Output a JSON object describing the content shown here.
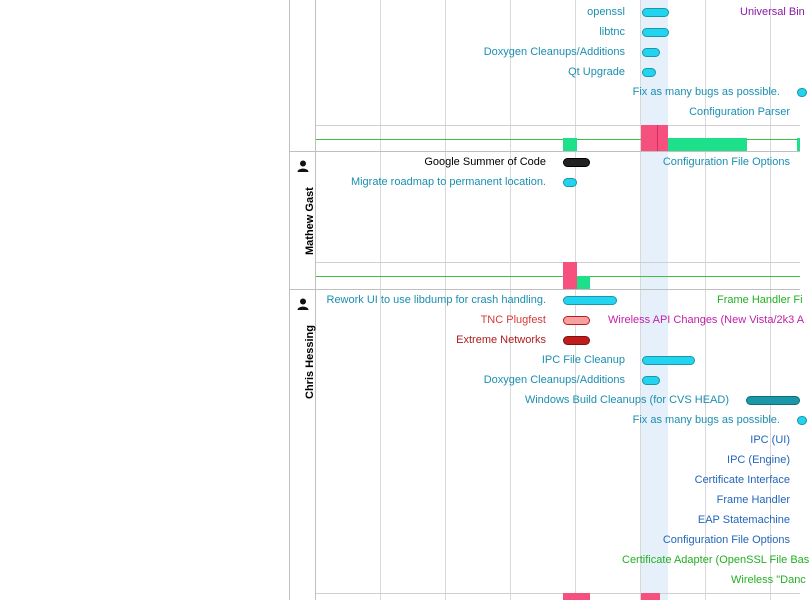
{
  "colors": {
    "blue_text": "#1a8fb0",
    "navy_text": "#2266bb",
    "purple_text": "#8a1aa8",
    "magenta_text": "#c21fa8",
    "green_text": "#22b022",
    "red_text": "#d83a3a",
    "darkred_text": "#b01c1c",
    "pill_cyan": "#22d4f0",
    "pill_teal": "#1a97a8",
    "pill_black": "#222222",
    "pill_pink": "#f6a0a0",
    "pill_red": "#c01c1c",
    "load_pink": "#f6517e",
    "load_green": "#1ee08a"
  },
  "sections": {
    "top": {
      "labels": {
        "openssl": "openssl",
        "universal": "Universal Bin",
        "libtnc": "libtnc",
        "doxygen": "Doxygen Cleanups/Additions",
        "qt": "Qt Upgrade",
        "bugs": "Fix as many bugs as possible.",
        "config_parser": "Configuration Parser"
      }
    },
    "mathew": {
      "person": "Mathew Gast",
      "icon": "person-icon",
      "labels": {
        "gsoc": "Google Summer of Code",
        "config_file_options": "Configuration File Options",
        "roadmap": "Migrate roadmap to permanent location."
      }
    },
    "chris": {
      "person": "Chris Hessing",
      "icon": "person-icon",
      "labels": {
        "rework": "Rework UI to use libdump for crash handling.",
        "frame_handler_fi": "Frame Handler Fi",
        "tnc": "TNC Plugfest",
        "wireless_api": "Wireless API Changes (New Vista/2k3 A",
        "extreme": "Extreme Networks",
        "ipc_cleanup": "IPC File Cleanup",
        "doxygen": "Doxygen Cleanups/Additions",
        "windows_build": "Windows Build Cleanups (for CVS HEAD)",
        "bugs": "Fix as many bugs as possible.",
        "ipc_ui": "IPC (UI)",
        "ipc_engine": "IPC (Engine)",
        "cert_interface": "Certificate Interface",
        "frame_handler": "Frame Handler",
        "eap": "EAP Statemachine",
        "config_file_options": "Configuration File Options",
        "cert_adapter": "Certificate Adapter (OpenSSL File Bas",
        "wireless_dance": "Wireless \"Danc"
      }
    }
  }
}
